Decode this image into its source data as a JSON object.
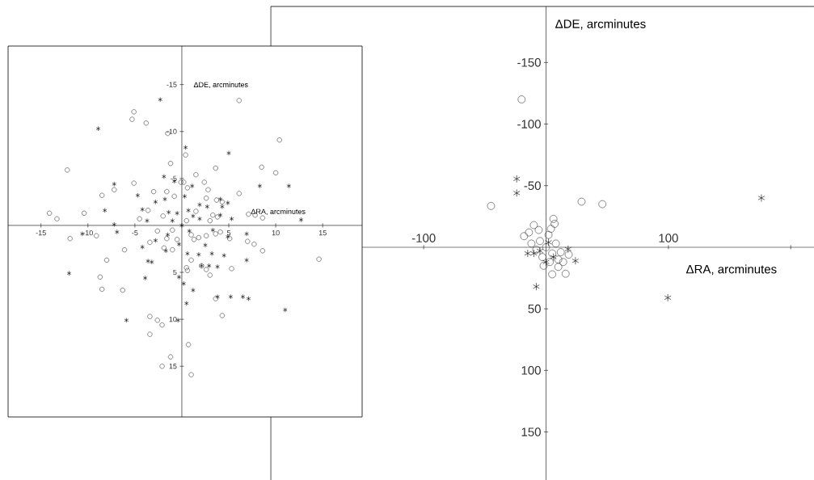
{
  "chart_data": [
    {
      "type": "scatter",
      "xlabel": "ΔRA, arcminutes",
      "ylabel": "ΔDE, arcminutes",
      "xlim": [
        -225,
        219
      ],
      "ylim": [
        189,
        -195.5
      ],
      "xticks": [
        -100,
        100,
        {
          "value": 200,
          "label": null
        }
      ],
      "yticks": [
        -150,
        -100,
        -50,
        50,
        100,
        150
      ],
      "series": [
        {
          "color": "#3c3c3c",
          "marker": "circle",
          "x": [
            -20,
            -45,
            29,
            46,
            6,
            -10,
            -18,
            5,
            16,
            10,
            18.5,
            0,
            -5,
            5,
            -8,
            8,
            3,
            -3,
            10,
            -12,
            2,
            12,
            7,
            -14,
            -6,
            -2,
            4,
            14
          ],
          "values": [
            -120,
            -33.5,
            -37,
            -35,
            -23,
            -18,
            -9,
            22,
            21.5,
            16,
            6,
            0,
            -5,
            5,
            2,
            -3,
            12,
            8,
            10,
            -3,
            -10,
            4,
            -19,
            -12,
            -14,
            15,
            -15,
            12
          ]
        },
        {
          "color": "#000000",
          "marker": "cross",
          "x": [
            -24,
            -24,
            176,
            99.5,
            -8,
            18,
            24,
            -5,
            2,
            6,
            -10,
            0,
            -15
          ],
          "values": [
            -55.5,
            -44,
            -40,
            41,
            32,
            1.5,
            11,
            3,
            -4,
            8,
            5,
            12,
            5
          ]
        }
      ]
    },
    {
      "type": "scatter",
      "xlabel": "ΔRA, arcminutes",
      "ylabel": "ΔDE, arcminutes",
      "xlim": [
        -18.5,
        19.2
      ],
      "ylim": [
        20.4,
        -19.1
      ],
      "xticks": [
        -15,
        -10,
        -5,
        5,
        10,
        15
      ],
      "yticks": [
        -15,
        -10,
        -5,
        5,
        10,
        15
      ],
      "series": [
        {
          "color": "#3c3c3c",
          "marker": "circle",
          "x": [
            -5.1,
            -5.3,
            -3.8,
            -1.5,
            -1.2,
            -12.2,
            -5.1,
            -7.2,
            -8.5,
            -3.0,
            -1.6,
            -0.8,
            -0.1,
            -3.6,
            -4.5,
            -14.1,
            -13.3,
            -10.4,
            6.1,
            10.4,
            0.4,
            3.6,
            8.5,
            10.0,
            1.5,
            2.4,
            2.8,
            0.2,
            0.6,
            6.1,
            2.6,
            3.7,
            4.3,
            7.1,
            7.8,
            8.6,
            3.3,
            3.8,
            3.0,
            -11.9,
            -9.1,
            -6.1,
            -8.0,
            -8.7,
            -8.5,
            -6.3,
            -3.4,
            -1.9,
            -1.0,
            -1.6,
            -2.6,
            -3.4,
            -2.6,
            -2.1,
            -3.4,
            -1.2,
            -2.1,
            2.6,
            3.6,
            4.1,
            5.1,
            1.3,
            1.8,
            7.0,
            7.7,
            8.6,
            14.6,
            1.0,
            0.5,
            0.6,
            2.1,
            2.6,
            3.0,
            5.3,
            3.6,
            4.3,
            0.7,
            1.0,
            -1,
            0.5,
            1,
            -0.5,
            -2,
            1.5
          ],
          "values": [
            -12.1,
            -11.3,
            -10.9,
            -9.8,
            -6.6,
            -5.9,
            -4.5,
            -3.8,
            -3.2,
            -3.6,
            -3.6,
            -3.1,
            -4.6,
            -1.6,
            -0.7,
            -1.3,
            -0.7,
            -1.3,
            -13.3,
            -9.1,
            -7.5,
            -6.1,
            -6.2,
            -5.6,
            -5.4,
            -4.6,
            -3.8,
            -4.6,
            -4.0,
            -3.4,
            -2.9,
            -2.7,
            -2.5,
            -1.2,
            -1.1,
            -0.8,
            -1.1,
            -0.9,
            -0.5,
            1.4,
            1.1,
            2.6,
            3.7,
            5.5,
            6.8,
            6.9,
            1.8,
            2.4,
            2.6,
            1.4,
            0.6,
            9.7,
            10.1,
            10.6,
            11.6,
            14.0,
            15.0,
            1.1,
            0.9,
            0.7,
            1.4,
            1.5,
            1.3,
            1.7,
            2.0,
            2.7,
            3.6,
            3.7,
            4.5,
            4.8,
            4.3,
            4.7,
            5.3,
            4.6,
            7.8,
            9.6,
            12.7,
            15.9,
            0.5,
            -0.5,
            1,
            1.5,
            -1,
            -1.5
          ]
        },
        {
          "color": "#000000",
          "marker": "cross",
          "x": [
            -2.3,
            -8.9,
            -1.9,
            -0.8,
            -7.2,
            -4.7,
            -2.8,
            -1.8,
            -8.2,
            -4.2,
            -1.4,
            -7.2,
            -3.7,
            -0.5,
            0.4,
            5.0,
            8.3,
            11.4,
            1.1,
            0.3,
            4.1,
            4.9,
            4.3,
            1.9,
            2.7,
            0.7,
            4.1,
            5.3,
            1.9,
            12.7,
            -10.6,
            -6.9,
            -4.2,
            -2.8,
            -3.6,
            -3.2,
            -1.7,
            -12.0,
            -3.9,
            -5.9,
            -0.3,
            -0.4,
            6.9,
            4.9,
            3.3,
            2.5,
            0.6,
            1.8,
            3.2,
            4.5,
            6.9,
            2.1,
            2.9,
            3.8,
            0.2,
            1.2,
            3.8,
            5.2,
            6.5,
            7.1,
            11.0,
            0.5,
            0,
            -1,
            0.8,
            -0.3,
            1.2,
            -1.5
          ],
          "values": [
            -13.4,
            -10.3,
            -5.2,
            -4.7,
            -4.4,
            -3.2,
            -2.5,
            -2.8,
            -1.6,
            -1.7,
            -1.4,
            -0.1,
            -0.5,
            -1.3,
            -8.3,
            -7.7,
            -4.2,
            -4.2,
            -4.2,
            -3.1,
            -2.8,
            -2.4,
            -2.0,
            -2.2,
            -2.0,
            -1.6,
            -1.1,
            -0.7,
            -0.7,
            -0.6,
            0.9,
            0.7,
            2.3,
            1.6,
            3.8,
            3.9,
            2.7,
            5.1,
            5.6,
            10.1,
            5.5,
            10.1,
            0.9,
            1.2,
            0.5,
            2.1,
            3.0,
            3.1,
            3.0,
            3.2,
            3.7,
            4.3,
            4.3,
            4.4,
            6.2,
            6.9,
            7.6,
            7.6,
            7.6,
            7.8,
            9.0,
            8.3,
            0,
            -0.5,
            0.6,
            2,
            -1,
            1
          ]
        }
      ]
    }
  ]
}
